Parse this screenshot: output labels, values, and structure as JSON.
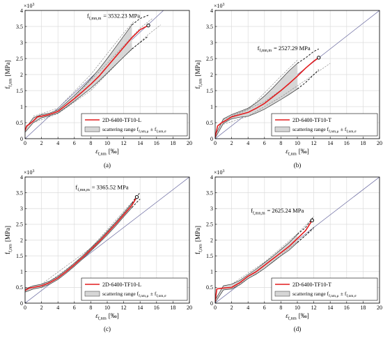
{
  "chart_data": [
    {
      "panel_label": "(a)",
      "type": "line",
      "xlabel": "ε",
      "xlabel_sub": "f,nm",
      "xlabel_unit": "[‰]",
      "ylabel": "f",
      "ylabel_sub": "f,nm",
      "ylabel_unit": "[MPa]",
      "y_multiplier_base": "×10",
      "y_multiplier_exp": "3",
      "xlim": [
        0,
        20
      ],
      "ylim": [
        0,
        4
      ],
      "xticks": [
        "0",
        "2",
        "4",
        "6",
        "8",
        "10",
        "12",
        "14",
        "16",
        "18",
        "20"
      ],
      "yticks": [
        "0",
        "0.5",
        "1",
        "1.5",
        "2",
        "2.5",
        "3",
        "3.5",
        "4"
      ],
      "grid": true,
      "legend_position": "bottom-right",
      "legend": {
        "series": "2D-6400-TF10-L",
        "range_prefix": "scattering range f",
        "range_sub1": "f,nm,μ",
        "range_pm": "±",
        "range_f": "f",
        "range_sub2": "f,nm,σ"
      },
      "annotation": {
        "prefix": "f",
        "sub": "f,mn,m",
        "value": "= 3532.23 MPa"
      },
      "end_point": [
        15.0,
        3.532
      ],
      "reference_line": {
        "from": [
          0,
          0
        ],
        "to": [
          20,
          4.75
        ]
      },
      "mean_curve": [
        [
          0,
          0.25
        ],
        [
          0.2,
          0.4
        ],
        [
          0.5,
          0.45
        ],
        [
          1,
          0.55
        ],
        [
          1.5,
          0.68
        ],
        [
          2,
          0.7
        ],
        [
          3,
          0.76
        ],
        [
          4,
          0.85
        ],
        [
          5,
          1.05
        ],
        [
          6,
          1.25
        ],
        [
          7,
          1.47
        ],
        [
          8,
          1.7
        ],
        [
          9,
          1.95
        ],
        [
          10,
          2.25
        ],
        [
          11,
          2.55
        ],
        [
          12,
          2.85
        ],
        [
          13,
          3.15
        ],
        [
          14,
          3.4
        ],
        [
          15,
          3.532
        ]
      ],
      "range_upper": [
        [
          0,
          0.3
        ],
        [
          1,
          0.65
        ],
        [
          2,
          0.75
        ],
        [
          3,
          0.8
        ],
        [
          4,
          0.9
        ],
        [
          5,
          1.12
        ],
        [
          6,
          1.35
        ],
        [
          7,
          1.6
        ],
        [
          8,
          1.87
        ],
        [
          9,
          2.17
        ],
        [
          10,
          2.5
        ],
        [
          11,
          2.85
        ],
        [
          12,
          3.2
        ],
        [
          13,
          3.55
        ]
      ],
      "range_lower": [
        [
          0,
          0.2
        ],
        [
          1,
          0.5
        ],
        [
          2,
          0.65
        ],
        [
          3,
          0.72
        ],
        [
          4,
          0.8
        ],
        [
          5,
          0.98
        ],
        [
          6,
          1.17
        ],
        [
          7,
          1.37
        ],
        [
          8,
          1.57
        ],
        [
          9,
          1.8
        ],
        [
          10,
          2.05
        ],
        [
          11,
          2.3
        ],
        [
          12,
          2.55
        ],
        [
          13,
          2.8
        ]
      ],
      "mean_ext_upper": [
        [
          13,
          3.55
        ],
        [
          14,
          3.75
        ],
        [
          15,
          3.85
        ]
      ],
      "mean_ext_lower": [
        [
          13,
          2.8
        ],
        [
          14,
          3.0
        ],
        [
          15,
          3.2
        ]
      ],
      "specimen_dashes": [
        [
          [
            1,
            0.7
          ],
          [
            4,
            0.95
          ],
          [
            8,
            2.0
          ],
          [
            12,
            3.3
          ],
          [
            13.2,
            3.65
          ]
        ],
        [
          [
            1,
            0.5
          ],
          [
            4,
            0.78
          ],
          [
            8,
            1.5
          ],
          [
            12,
            2.55
          ],
          [
            15,
            3.25
          ],
          [
            16.5,
            3.55
          ]
        ],
        [
          [
            6,
            1.3
          ],
          [
            10,
            2.35
          ],
          [
            14,
            3.45
          ],
          [
            15.5,
            3.75
          ]
        ]
      ]
    },
    {
      "panel_label": "(b)",
      "type": "line",
      "xlabel": "ε",
      "xlabel_sub": "f,nm",
      "xlabel_unit": "[‰]",
      "ylabel": "f",
      "ylabel_sub": "f,nm",
      "ylabel_unit": "[MPa]",
      "y_multiplier_base": "×10",
      "y_multiplier_exp": "3",
      "xlim": [
        0,
        20
      ],
      "ylim": [
        0,
        4
      ],
      "xticks": [
        "0",
        "2",
        "4",
        "6",
        "8",
        "10",
        "12",
        "14",
        "16",
        "18",
        "20"
      ],
      "yticks": [
        "0",
        "0.5",
        "1",
        "1.5",
        "2",
        "2.5",
        "3",
        "3.5",
        "4"
      ],
      "grid": true,
      "legend_position": "bottom-right",
      "legend": {
        "series": "2D-6400-TF10-T",
        "range_prefix": "scattering range f",
        "range_sub1": "f,nm,μ",
        "range_pm": "±",
        "range_f": "f",
        "range_sub2": "f,nm,σ"
      },
      "annotation": {
        "prefix": "f",
        "sub": "f,mn,m",
        "value": "= 2527.29 MPa"
      },
      "end_point": [
        12.6,
        2.527
      ],
      "reference_line": {
        "from": [
          0,
          0
        ],
        "to": [
          20,
          4.0
        ]
      },
      "mean_curve": [
        [
          0,
          0.05
        ],
        [
          0.3,
          0.4
        ],
        [
          0.8,
          0.5
        ],
        [
          1.5,
          0.6
        ],
        [
          2,
          0.68
        ],
        [
          3,
          0.75
        ],
        [
          4,
          0.82
        ],
        [
          5,
          0.95
        ],
        [
          6,
          1.1
        ],
        [
          7,
          1.3
        ],
        [
          8,
          1.5
        ],
        [
          9,
          1.72
        ],
        [
          10,
          1.95
        ],
        [
          11,
          2.2
        ],
        [
          12,
          2.42
        ],
        [
          12.6,
          2.527
        ]
      ],
      "range_upper": [
        [
          0,
          0.1
        ],
        [
          1,
          0.62
        ],
        [
          2,
          0.75
        ],
        [
          3,
          0.85
        ],
        [
          4,
          0.95
        ],
        [
          5,
          1.12
        ],
        [
          6,
          1.33
        ],
        [
          7,
          1.58
        ],
        [
          8,
          1.85
        ],
        [
          9,
          2.12
        ],
        [
          10,
          2.35
        ]
      ],
      "range_lower": [
        [
          0,
          0.02
        ],
        [
          1,
          0.48
        ],
        [
          2,
          0.62
        ],
        [
          3,
          0.67
        ],
        [
          4,
          0.7
        ],
        [
          5,
          0.8
        ],
        [
          6,
          0.92
        ],
        [
          7,
          1.07
        ],
        [
          8,
          1.22
        ],
        [
          9,
          1.38
        ],
        [
          10,
          1.55
        ]
      ],
      "mean_ext_upper": [
        [
          10,
          2.35
        ],
        [
          11,
          2.52
        ],
        [
          12,
          2.72
        ],
        [
          12.6,
          2.8
        ]
      ],
      "mean_ext_lower": [
        [
          10,
          1.55
        ],
        [
          11,
          1.75
        ],
        [
          12,
          2.0
        ],
        [
          12.6,
          2.15
        ]
      ],
      "specimen_dashes": [
        [
          [
            1,
            0.6
          ],
          [
            4,
            0.9
          ],
          [
            8,
            1.95
          ],
          [
            10,
            2.45
          ]
        ],
        [
          [
            1,
            0.45
          ],
          [
            4,
            0.7
          ],
          [
            8,
            1.3
          ],
          [
            12,
            2.0
          ],
          [
            14,
            2.35
          ]
        ],
        [
          [
            2,
            0.7
          ],
          [
            6,
            1.15
          ],
          [
            9,
            1.7
          ]
        ]
      ]
    },
    {
      "panel_label": "(c)",
      "type": "line",
      "xlabel": "ε",
      "xlabel_sub": "f,nm",
      "xlabel_unit": "[‰]",
      "ylabel": "f",
      "ylabel_sub": "f,nm",
      "ylabel_unit": "[MPa]",
      "y_multiplier_base": "×10",
      "y_multiplier_exp": "3",
      "xlim": [
        0,
        20
      ],
      "ylim": [
        0,
        4
      ],
      "xticks": [
        "0",
        "2",
        "4",
        "6",
        "8",
        "10",
        "12",
        "14",
        "16",
        "18",
        "20"
      ],
      "yticks": [
        "0",
        "0.5",
        "1",
        "1.5",
        "2",
        "2.5",
        "3",
        "3.5",
        "4"
      ],
      "grid": true,
      "legend_position": "bottom-right",
      "legend": {
        "series": "2D-6400-TF10-L",
        "range_prefix": "scattering range f",
        "range_sub1": "f,nm,μ",
        "range_pm": "±",
        "range_f": "f",
        "range_sub2": "f,nm,σ"
      },
      "annotation": {
        "prefix": "f",
        "sub": "f,mn,m",
        "value": "= 3365.52 MPa"
      },
      "end_point": [
        13.6,
        3.366
      ],
      "reference_line": {
        "from": [
          0,
          0
        ],
        "to": [
          20,
          4.0
        ]
      },
      "mean_curve": [
        [
          0,
          0.4
        ],
        [
          0.5,
          0.48
        ],
        [
          1,
          0.5
        ],
        [
          2,
          0.55
        ],
        [
          3,
          0.65
        ],
        [
          4,
          0.8
        ],
        [
          5,
          1.0
        ],
        [
          6,
          1.22
        ],
        [
          7,
          1.45
        ],
        [
          8,
          1.7
        ],
        [
          9,
          1.95
        ],
        [
          10,
          2.22
        ],
        [
          11,
          2.5
        ],
        [
          12,
          2.8
        ],
        [
          13,
          3.1
        ],
        [
          13.6,
          3.366
        ]
      ],
      "range_upper": [
        [
          0,
          0.45
        ],
        [
          1,
          0.55
        ],
        [
          2,
          0.6
        ],
        [
          3,
          0.7
        ],
        [
          4,
          0.85
        ],
        [
          5,
          1.05
        ],
        [
          6,
          1.27
        ],
        [
          7,
          1.5
        ],
        [
          8,
          1.75
        ],
        [
          9,
          2.0
        ],
        [
          10,
          2.28
        ],
        [
          11,
          2.56
        ],
        [
          12,
          2.86
        ],
        [
          13,
          3.17
        ]
      ],
      "range_lower": [
        [
          0,
          0.35
        ],
        [
          1,
          0.45
        ],
        [
          2,
          0.5
        ],
        [
          3,
          0.6
        ],
        [
          4,
          0.75
        ],
        [
          5,
          0.95
        ],
        [
          6,
          1.17
        ],
        [
          7,
          1.4
        ],
        [
          8,
          1.65
        ],
        [
          9,
          1.9
        ],
        [
          10,
          2.16
        ],
        [
          11,
          2.44
        ],
        [
          12,
          2.74
        ],
        [
          13,
          3.03
        ]
      ],
      "mean_ext_upper": [
        [
          13,
          3.17
        ],
        [
          13.6,
          3.4
        ],
        [
          14,
          3.5
        ]
      ],
      "mean_ext_lower": [
        [
          13,
          3.03
        ],
        [
          13.6,
          3.2
        ],
        [
          14,
          3.3
        ]
      ],
      "specimen_dashes": [
        [
          [
            2,
            0.6
          ],
          [
            8,
            1.75
          ],
          [
            13,
            3.2
          ]
        ],
        [
          [
            2,
            0.5
          ],
          [
            8,
            1.65
          ],
          [
            13.5,
            3.3
          ]
        ]
      ]
    },
    {
      "panel_label": "(d)",
      "type": "line",
      "xlabel": "ε",
      "xlabel_sub": "f,nm",
      "xlabel_unit": "[‰]",
      "ylabel": "f",
      "ylabel_sub": "f,nm",
      "ylabel_unit": "[MPa]",
      "y_multiplier_base": "×10",
      "y_multiplier_exp": "3",
      "xlim": [
        0,
        20
      ],
      "ylim": [
        0,
        4
      ],
      "xticks": [
        "0",
        "2",
        "4",
        "6",
        "8",
        "10",
        "12",
        "14",
        "16",
        "18",
        "20"
      ],
      "yticks": [
        "0",
        "0.5",
        "1",
        "1.5",
        "2",
        "2.5",
        "3",
        "3.5",
        "4"
      ],
      "grid": true,
      "legend_position": "bottom-right",
      "legend": {
        "series": "2D-6400-TF10-T",
        "range_prefix": "scattering range f",
        "range_sub1": "f,nm,μ",
        "range_pm": "±",
        "range_f": "f",
        "range_sub2": "f,nm,σ"
      },
      "annotation": {
        "prefix": "f",
        "sub": "f,mn,m",
        "value": "= 2625.24 MPa"
      },
      "end_point": [
        11.8,
        2.625
      ],
      "reference_line": {
        "from": [
          0,
          0
        ],
        "to": [
          20,
          4.0
        ]
      },
      "mean_curve": [
        [
          0,
          0.05
        ],
        [
          0.2,
          0.45
        ],
        [
          1,
          0.48
        ],
        [
          2,
          0.5
        ],
        [
          3,
          0.65
        ],
        [
          4,
          0.85
        ],
        [
          5,
          1.0
        ],
        [
          6,
          1.2
        ],
        [
          7,
          1.4
        ],
        [
          8,
          1.6
        ],
        [
          9,
          1.8
        ],
        [
          10,
          2.05
        ],
        [
          11,
          2.3
        ],
        [
          11.8,
          2.625
        ]
      ],
      "range_upper": [
        [
          0,
          0.1
        ],
        [
          1,
          0.55
        ],
        [
          2,
          0.6
        ],
        [
          3,
          0.72
        ],
        [
          4,
          0.9
        ],
        [
          5,
          1.08
        ],
        [
          6,
          1.28
        ],
        [
          7,
          1.48
        ],
        [
          8,
          1.7
        ],
        [
          9,
          1.92
        ],
        [
          10,
          2.18
        ]
      ],
      "range_lower": [
        [
          0,
          0.02
        ],
        [
          1,
          0.42
        ],
        [
          2,
          0.45
        ],
        [
          3,
          0.58
        ],
        [
          4,
          0.78
        ],
        [
          5,
          0.92
        ],
        [
          6,
          1.1
        ],
        [
          7,
          1.3
        ],
        [
          8,
          1.5
        ],
        [
          9,
          1.68
        ],
        [
          10,
          1.92
        ]
      ],
      "mean_ext_upper": [
        [
          10,
          2.18
        ],
        [
          11,
          2.4
        ],
        [
          12,
          2.75
        ]
      ],
      "mean_ext_lower": [
        [
          10,
          1.92
        ],
        [
          11,
          2.15
        ],
        [
          12,
          2.4
        ]
      ],
      "specimen_dashes": [
        [
          [
            2,
            0.6
          ],
          [
            6,
            1.3
          ],
          [
            10,
            2.2
          ],
          [
            11.5,
            2.6
          ]
        ],
        [
          [
            2,
            0.45
          ],
          [
            6,
            1.1
          ],
          [
            10,
            1.95
          ],
          [
            12,
            2.35
          ]
        ]
      ]
    }
  ]
}
